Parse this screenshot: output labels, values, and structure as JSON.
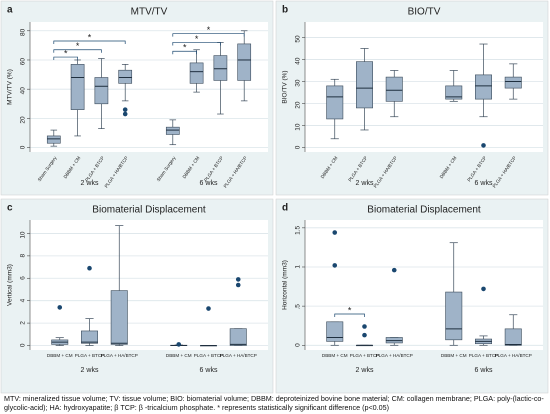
{
  "caption": "MTV: mineralized tissue volume; TV: tissue volume; BIO: biomaterial volume; DBBM: deproteinized bovine bone material; CM: collagen membrane; PLGA: poly-(lactic-co-glycolic-acid); HA: hydroxyapatite; β TCP: β -tricalcium phosphate. * represents statistically significant difference (p<0.05)",
  "chart_data": [
    {
      "type": "box",
      "panel": "a",
      "title": "MTV/TV",
      "ylabel": "MTV/TV (%)",
      "categories": [
        "Sham Surgery",
        "DBBM + CM",
        "PLGA + BTCP",
        "PLGA + HA/BTCP",
        "Sham Surgery",
        "DBBM + CM",
        "PLGA + BTCP",
        "PLGA + HA/BTCP"
      ],
      "groups": [
        "2 wks",
        "6 wks"
      ],
      "ylim": [
        -3,
        86
      ],
      "yticks": [
        0,
        20,
        40,
        60,
        80
      ],
      "grid": true,
      "color": "#9fb3c8",
      "outlier_color": "#1a476f",
      "boxes": [
        {
          "min": 1,
          "q1": 3,
          "median": 6,
          "q3": 8,
          "max": 12,
          "outliers": []
        },
        {
          "min": 8,
          "q1": 26,
          "median": 48,
          "q3": 57,
          "max": 60,
          "outliers": []
        },
        {
          "min": 13,
          "q1": 30,
          "median": 42,
          "q3": 48,
          "max": 61,
          "outliers": []
        },
        {
          "min": 32,
          "q1": 44,
          "median": 48,
          "q3": 53,
          "max": 57,
          "outliers": [
            23,
            26
          ]
        },
        {
          "min": 2,
          "q1": 9,
          "median": 12,
          "q3": 14,
          "max": 19,
          "outliers": []
        },
        {
          "min": 38,
          "q1": 44,
          "median": 52,
          "q3": 58,
          "max": 67,
          "outliers": []
        },
        {
          "min": 23,
          "q1": 46,
          "median": 54,
          "q3": 63,
          "max": 72,
          "outliers": []
        },
        {
          "min": 32,
          "q1": 46,
          "median": 60,
          "q3": 71,
          "max": 80,
          "outliers": []
        }
      ],
      "significance": [
        {
          "from": 0,
          "to": 1,
          "y": 62,
          "label": "*"
        },
        {
          "from": 0,
          "to": 2,
          "y": 67,
          "label": "*"
        },
        {
          "from": 0,
          "to": 3,
          "y": 73,
          "label": "*"
        },
        {
          "from": 4,
          "to": 5,
          "y": 66,
          "label": "*"
        },
        {
          "from": 4,
          "to": 6,
          "y": 72,
          "label": "*"
        },
        {
          "from": 4,
          "to": 7,
          "y": 78,
          "label": "*"
        }
      ]
    },
    {
      "type": "box",
      "panel": "b",
      "title": "BIO/TV",
      "ylabel": "BIO/TV (%)",
      "categories": [
        "DBBM + CM",
        "PLGA + BTCP",
        "PLGA + HA/BTCP",
        "DBBM + CM",
        "PLGA + BTCP",
        "PLGA + HA/BTCP"
      ],
      "groups": [
        "2 wks",
        "6 wks"
      ],
      "ylim": [
        -2,
        57
      ],
      "yticks": [
        0,
        10,
        20,
        30,
        40,
        50
      ],
      "grid": true,
      "color": "#9fb3c8",
      "outlier_color": "#1a476f",
      "boxes": [
        {
          "min": 4,
          "q1": 13,
          "median": 23,
          "q3": 28,
          "max": 31,
          "outliers": []
        },
        {
          "min": 8,
          "q1": 18,
          "median": 27,
          "q3": 39,
          "max": 45,
          "outliers": []
        },
        {
          "min": 14,
          "q1": 21,
          "median": 26,
          "q3": 32,
          "max": 35,
          "outliers": []
        },
        {
          "min": 21,
          "q1": 22,
          "median": 23,
          "q3": 28,
          "max": 35,
          "outliers": []
        },
        {
          "min": 14,
          "q1": 22,
          "median": 28,
          "q3": 33,
          "max": 47,
          "outliers": [
            1
          ]
        },
        {
          "min": 22,
          "q1": 27,
          "median": 30,
          "q3": 32,
          "max": 38,
          "outliers": []
        }
      ]
    },
    {
      "type": "box",
      "panel": "c",
      "title": "Biomaterial Displacement",
      "ylabel": "Vertical (mm3)",
      "categories": [
        "DBBM + CM",
        "PLGA + BTCP",
        "PLGA + HA/BTCP",
        "DBBM + CM",
        "PLGA + BTCP",
        "PLGA + HA/BTCP"
      ],
      "groups": [
        "2 wks",
        "6 wks"
      ],
      "ylim": [
        -0.4,
        11.2
      ],
      "yticks": [
        0,
        2,
        4,
        6,
        8,
        10
      ],
      "grid": true,
      "color": "#9fb3c8",
      "outlier_color": "#1a476f",
      "boxes": [
        {
          "min": 0,
          "q1": 0.1,
          "median": 0.3,
          "q3": 0.5,
          "max": 0.7,
          "outliers": [
            3.4
          ]
        },
        {
          "min": 0,
          "q1": 0.2,
          "median": 0.3,
          "q3": 1.3,
          "max": 2.4,
          "outliers": [
            6.9
          ]
        },
        {
          "min": 0,
          "q1": 0.1,
          "median": 0.2,
          "q3": 4.9,
          "max": 10.7,
          "outliers": []
        },
        {
          "min": 0,
          "q1": 0,
          "median": 0,
          "q3": 0.03,
          "max": 0.05,
          "outliers": [
            0.1
          ]
        },
        {
          "min": 0,
          "q1": 0,
          "median": 0,
          "q3": 0,
          "max": 0,
          "outliers": [
            3.3
          ]
        },
        {
          "min": 0,
          "q1": 0,
          "median": 0.1,
          "q3": 1.5,
          "max": 1.5,
          "outliers": [
            5.4,
            5.9
          ]
        }
      ]
    },
    {
      "type": "box",
      "panel": "d",
      "title": "Biomaterial Displacement",
      "ylabel": "Horizontal (mm3)",
      "categories": [
        "DBBM + CM",
        "PLGA + BTCP",
        "PLGA + HA/BTCP",
        "DBBM + CM",
        "PLGA + BTCP",
        "PLGA + HA/BTCP"
      ],
      "groups": [
        "2 wks",
        "6 wks"
      ],
      "ylim": [
        -0.06,
        1.6
      ],
      "yticks": [
        0,
        {
          "value": 0.5,
          "label": ".5"
        },
        1,
        1.5
      ],
      "grid": true,
      "color": "#9fb3c8",
      "outlier_color": "#1a476f",
      "boxes": [
        {
          "min": 0,
          "q1": 0.05,
          "median": 0.1,
          "q3": 0.3,
          "max": 0.3,
          "outliers": [
            1.02,
            1.44
          ]
        },
        {
          "min": 0,
          "q1": 0,
          "median": 0,
          "q3": 0,
          "max": 0,
          "outliers": [
            0.13,
            0.24
          ]
        },
        {
          "min": 0,
          "q1": 0.03,
          "median": 0.06,
          "q3": 0.1,
          "max": 0.1,
          "outliers": [
            0.96
          ]
        },
        {
          "min": 0,
          "q1": 0.07,
          "median": 0.21,
          "q3": 0.68,
          "max": 1.31,
          "outliers": []
        },
        {
          "min": 0,
          "q1": 0.02,
          "median": 0.05,
          "q3": 0.08,
          "max": 0.12,
          "outliers": [
            0.72
          ]
        },
        {
          "min": 0,
          "q1": 0,
          "median": 0.01,
          "q3": 0.21,
          "max": 0.39,
          "outliers": []
        }
      ],
      "significance": [
        {
          "from": 0,
          "to": 1,
          "y": 0.4,
          "label": "*"
        }
      ]
    }
  ]
}
